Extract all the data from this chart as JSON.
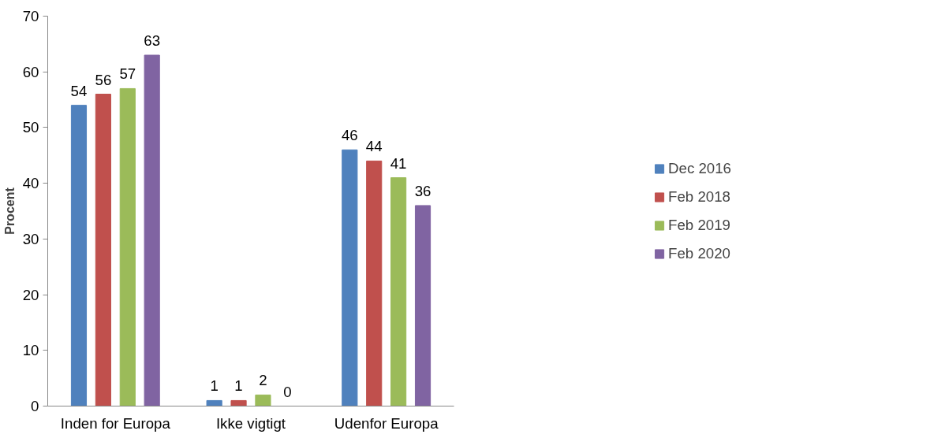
{
  "chart_data": {
    "type": "bar",
    "ylabel": "Procent",
    "categories": [
      "Inden for Europa",
      "Ikke vigtigt",
      "Udenfor Europa"
    ],
    "series": [
      {
        "name": "Dec 2016",
        "color": "#4f81bd",
        "values": [
          54,
          1,
          46
        ]
      },
      {
        "name": "Feb 2018",
        "color": "#c0504d",
        "values": [
          56,
          1,
          44
        ]
      },
      {
        "name": "Feb 2019",
        "color": "#9bbb59",
        "values": [
          57,
          2,
          41
        ]
      },
      {
        "name": "Feb 2020",
        "color": "#8064a2",
        "values": [
          63,
          0,
          36
        ]
      }
    ],
    "ylim": [
      0,
      70
    ],
    "yticks": [
      0,
      10,
      20,
      30,
      40,
      50,
      60,
      70
    ],
    "data_labels": true,
    "grid": false,
    "legend": "right"
  }
}
